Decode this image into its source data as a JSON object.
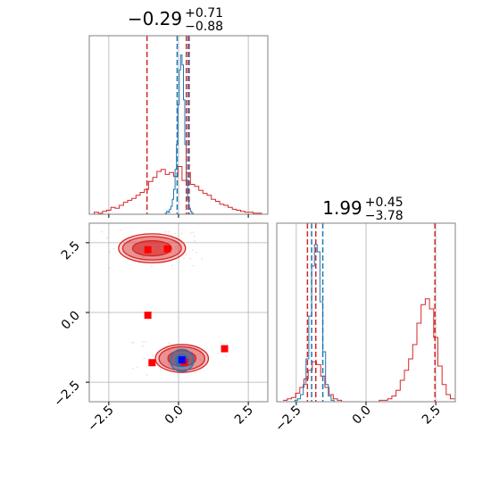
{
  "chart_data": {
    "type": "corner",
    "colors": {
      "blue": "#1f77b4",
      "red": "#d62728",
      "marker_red": "#ff0000",
      "marker_blue": "#0000ff",
      "grid": "#b0b0b0"
    },
    "grid": true,
    "x_param": {
      "range": [
        -3.2,
        3.2
      ],
      "ticks": [
        -2.5,
        0.0,
        2.5
      ],
      "tick_labels": [
        "−2.5",
        "0.0",
        "2.5"
      ],
      "title": {
        "main": "−0.29",
        "sup": "+0.71",
        "sub": "−0.88"
      },
      "quantile_lines": {
        "blue": [
          -0.05,
          0.35
        ],
        "red": [
          -1.13,
          0.28,
          0.38
        ]
      },
      "hist_blue": {
        "x": [
          -0.55,
          -0.5,
          -0.45,
          -0.4,
          -0.35,
          -0.3,
          -0.25,
          -0.2,
          -0.15,
          -0.1,
          -0.05,
          0.0,
          0.05,
          0.1,
          0.15,
          0.2,
          0.25,
          0.3,
          0.35,
          0.4,
          0.45,
          0.5,
          0.55
        ],
        "y": [
          0,
          0,
          1,
          3,
          2,
          5,
          8,
          15,
          25,
          45,
          70,
          110,
          145,
          160,
          150,
          115,
          70,
          35,
          15,
          6,
          3,
          1,
          0
        ]
      },
      "hist_red": {
        "x": [
          -3.1,
          -2.95,
          -2.8,
          -2.65,
          -2.5,
          -2.35,
          -2.2,
          -2.05,
          -1.9,
          -1.75,
          -1.6,
          -1.45,
          -1.3,
          -1.15,
          -1.0,
          -0.85,
          -0.7,
          -0.55,
          -0.4,
          -0.25,
          -0.1,
          0.05,
          0.2,
          0.35,
          0.5,
          0.65,
          0.8,
          0.95,
          1.1,
          1.25,
          1.4,
          1.55,
          1.7,
          1.85,
          2.0,
          2.15,
          2.3,
          2.45,
          2.6,
          2.75,
          2.9,
          3.05
        ],
        "y": [
          0,
          2,
          1,
          3,
          4,
          7,
          6,
          9,
          12,
          14,
          16,
          19,
          22,
          25,
          33,
          37,
          43,
          45,
          40,
          42,
          38,
          48,
          34,
          42,
          30,
          28,
          24,
          21,
          19,
          15,
          13,
          10,
          9,
          7,
          5,
          4,
          3,
          2,
          2,
          1,
          1,
          0
        ]
      },
      "hist_ymax": 165
    },
    "y_param": {
      "range": [
        -3.2,
        3.2
      ],
      "ticks": [
        -2.5,
        0.0,
        2.5
      ],
      "tick_labels": [
        "−2.5",
        "0.0",
        "2.5"
      ],
      "title": {
        "main": "1.99",
        "sup": "+0.45",
        "sub": "−3.78"
      },
      "quantile_lines": {
        "blue": [
          -1.95,
          -1.55
        ],
        "red": [
          -2.1,
          -1.8,
          2.47
        ]
      },
      "hist_blue": {
        "x": [
          -2.6,
          -2.5,
          -2.4,
          -2.3,
          -2.2,
          -2.1,
          -2.0,
          -1.9,
          -1.8,
          -1.7,
          -1.6,
          -1.5,
          -1.4,
          -1.3,
          -1.2,
          -1.1
        ],
        "y": [
          0,
          1,
          2,
          5,
          12,
          30,
          60,
          95,
          110,
          105,
          70,
          35,
          12,
          4,
          1,
          0
        ]
      },
      "hist_red": {
        "x": [
          -2.9,
          -2.75,
          -2.6,
          -2.45,
          -2.3,
          -2.15,
          -2.0,
          -1.85,
          -1.7,
          -1.55,
          -1.4,
          -1.25,
          -1.1,
          -0.95,
          -0.8,
          -0.65,
          -0.5,
          -0.35,
          -0.2,
          -0.05,
          0.1,
          0.25,
          0.4,
          0.55,
          0.7,
          0.85,
          1.0,
          1.15,
          1.3,
          1.45,
          1.6,
          1.75,
          1.9,
          2.05,
          2.2,
          2.35,
          2.5,
          2.65,
          2.8,
          2.95,
          3.1
        ],
        "y": [
          1,
          2,
          3,
          6,
          10,
          16,
          22,
          28,
          26,
          18,
          10,
          5,
          2,
          1,
          0,
          0,
          0,
          0,
          0,
          0,
          0,
          0,
          0,
          1,
          1,
          2,
          4,
          8,
          15,
          22,
          30,
          40,
          55,
          68,
          72,
          65,
          45,
          25,
          12,
          5,
          2
        ]
      },
      "hist_ymax": 115
    },
    "contours": {
      "red_upper": {
        "center": [
          -0.95,
          2.3
        ],
        "levels": [
          [
            1.2,
            0.52
          ],
          [
            1.05,
            0.42
          ],
          [
            0.7,
            0.27
          ]
        ]
      },
      "red_lower": {
        "center": [
          0.12,
          -1.65
        ],
        "levels": [
          [
            0.95,
            0.5
          ],
          [
            0.82,
            0.42
          ],
          [
            0.5,
            0.28
          ]
        ]
      },
      "blue_lower": {
        "center": [
          0.12,
          -1.72
        ],
        "levels": [
          [
            0.42,
            0.4
          ],
          [
            0.22,
            0.22
          ]
        ]
      }
    },
    "markers_red": [
      [
        -1.1,
        2.25
      ],
      [
        -0.4,
        2.28
      ],
      [
        -1.1,
        -0.1
      ],
      [
        -0.95,
        -1.8
      ],
      [
        1.65,
        -1.3
      ],
      [
        0.2,
        -1.78
      ]
    ],
    "markers_blue": [
      [
        0.12,
        -1.7
      ]
    ]
  }
}
